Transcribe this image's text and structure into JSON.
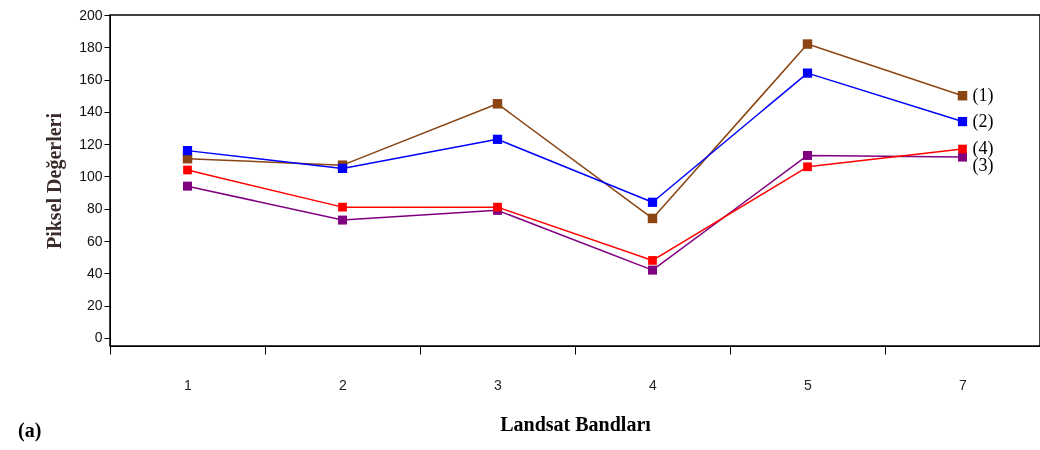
{
  "chart_data": {
    "type": "line",
    "xlabel": "Landsat Bandları",
    "ylabel": "Piksel Değerleri",
    "annotations": [
      "(a)"
    ],
    "categories": [
      "1",
      "2",
      "3",
      "4",
      "5",
      "7"
    ],
    "series": [
      {
        "name": "(1)",
        "color": "#8b4513",
        "values": [
          111,
          107,
          145,
          74,
          182,
          150
        ]
      },
      {
        "name": "(2)",
        "color": "#0000ff",
        "values": [
          116,
          105,
          123,
          84,
          164,
          134
        ]
      },
      {
        "name": "(3)",
        "color": "#800080",
        "values": [
          94,
          73,
          79,
          42,
          113,
          112
        ]
      },
      {
        "name": "(4)",
        "color": "#ff0000",
        "values": [
          104,
          81,
          81,
          48,
          106,
          117
        ]
      }
    ],
    "ylim": [
      -5,
      200
    ],
    "yticks": [
      0,
      20,
      40,
      60,
      80,
      100,
      120,
      140,
      160,
      180,
      200
    ],
    "grid": false,
    "marker": "square",
    "line_style": "solid"
  }
}
